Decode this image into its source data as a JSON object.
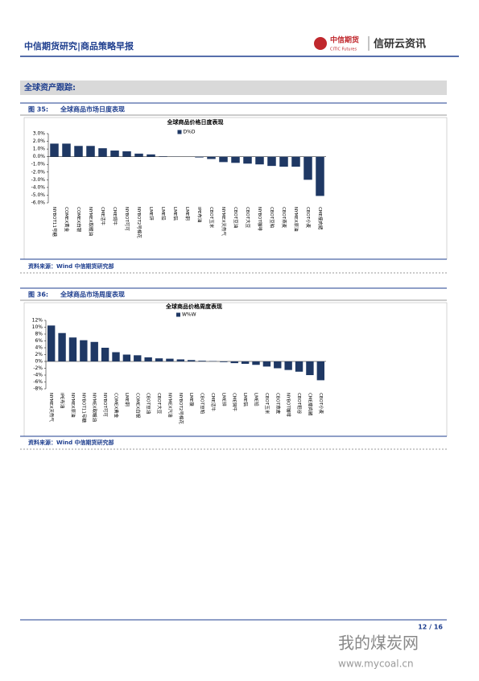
{
  "header": {
    "title": "中信期货研究|商品策略早报",
    "logo_cn": "中信期货",
    "logo_en": "CITIC Futures",
    "brand": "信研云资讯"
  },
  "section_title": "全球资产跟踪:",
  "figures": [
    {
      "label": "图 35:",
      "caption": "全球商品市场日度表现",
      "source": "资料来源：Wind 中信期货研究部",
      "chart_data": {
        "type": "bar",
        "title": "全球商品价格日度表现",
        "categories": [
          "NYBOT11号糖",
          "COMEX黄金",
          "COMEX白银",
          "NYMEX取暖油",
          "CME活牛",
          "CME饲牛",
          "NYBOT可可",
          "NYBOT2号棉花",
          "LME锌",
          "LME铅",
          "LME铝",
          "LME铜",
          "IPE布油",
          "CBOT玉米",
          "NYMEX天然气",
          "CBOT豆油",
          "CBOT大豆",
          "NYBOT咖啡",
          "CBOT豆粕",
          "CBOT燕麦",
          "NYMEX原油",
          "CBOT小麦",
          "CME瘦肉猪"
        ],
        "series": [
          {
            "name": "D%D",
            "color": "#1f3864",
            "values": [
              1.7,
              1.7,
              1.4,
              1.4,
              1.1,
              0.8,
              0.7,
              0.4,
              0.3,
              0.05,
              0.02,
              0.01,
              -0.1,
              -0.3,
              -0.7,
              -0.8,
              -0.9,
              -1.0,
              -1.2,
              -1.3,
              -1.3,
              -3.0,
              -5.1
            ]
          }
        ],
        "ylim": [
          -6,
          3
        ],
        "yticks": [
          {
            "value": 3,
            "label": "3.0%"
          },
          {
            "value": 2,
            "label": "2.0%"
          },
          {
            "value": 1,
            "label": "1.0%"
          },
          {
            "value": 0,
            "label": "0.0%"
          },
          {
            "value": -1,
            "label": "-1.0%"
          },
          {
            "value": -2,
            "label": "-2.0%"
          },
          {
            "value": -3,
            "label": "-3.0%"
          },
          {
            "value": -4,
            "label": "-4.0%"
          },
          {
            "value": -5,
            "label": "-5.0%"
          },
          {
            "value": -6,
            "label": "-6.0%"
          }
        ]
      }
    },
    {
      "label": "图 36:",
      "caption": "全球商品市场周度表现",
      "source": "资料来源：Wind 中信期货研究部",
      "chart_data": {
        "type": "bar",
        "title": "全球商品价格周度表现",
        "categories": [
          "NYMEX天然气",
          "IPE布油",
          "NYMEX原油",
          "NYBOT11号糖",
          "NYMEX取暖油",
          "NYBOT可可",
          "COMEX黄金",
          "LME铜",
          "COMEX白银",
          "CBOT豆油",
          "CBOT大豆",
          "NYMEX汽油",
          "NYBOT2号棉花",
          "LME镍",
          "CBOT豆粕",
          "CME活牛",
          "LME锌",
          "CME饲牛",
          "LME铝",
          "LME铅",
          "CBOT玉米",
          "CBOT燕麦",
          "NYBOT咖啡",
          "CBOT稻谷",
          "CME瘦肉猪",
          "CBOT小麦"
        ],
        "series": [
          {
            "name": "W%W",
            "color": "#1f3864",
            "values": [
              10.5,
              8.3,
              7.0,
              6.2,
              5.7,
              4.0,
              2.7,
              2.0,
              1.8,
              1.2,
              0.9,
              0.8,
              0.6,
              0.4,
              0.2,
              0.1,
              -0.2,
              -0.5,
              -0.7,
              -1.0,
              -1.5,
              -2.0,
              -2.5,
              -3.0,
              -4.0,
              -5.5
            ]
          }
        ],
        "ylim": [
          -8,
          12
        ],
        "yticks": [
          {
            "value": 12,
            "label": "12%"
          },
          {
            "value": 10,
            "label": "10%"
          },
          {
            "value": 8,
            "label": "8%"
          },
          {
            "value": 6,
            "label": "6%"
          },
          {
            "value": 4,
            "label": "4%"
          },
          {
            "value": 2,
            "label": "2%"
          },
          {
            "value": 0,
            "label": "0%"
          },
          {
            "value": -2,
            "label": "-2%"
          },
          {
            "value": -4,
            "label": "-4%"
          },
          {
            "value": -6,
            "label": "-6%"
          },
          {
            "value": -8,
            "label": "-8%"
          }
        ]
      }
    }
  ],
  "footer": {
    "page": "12 / 16"
  },
  "watermark": {
    "name": "我的煤炭网",
    "url": "www.mycoal.cn"
  }
}
